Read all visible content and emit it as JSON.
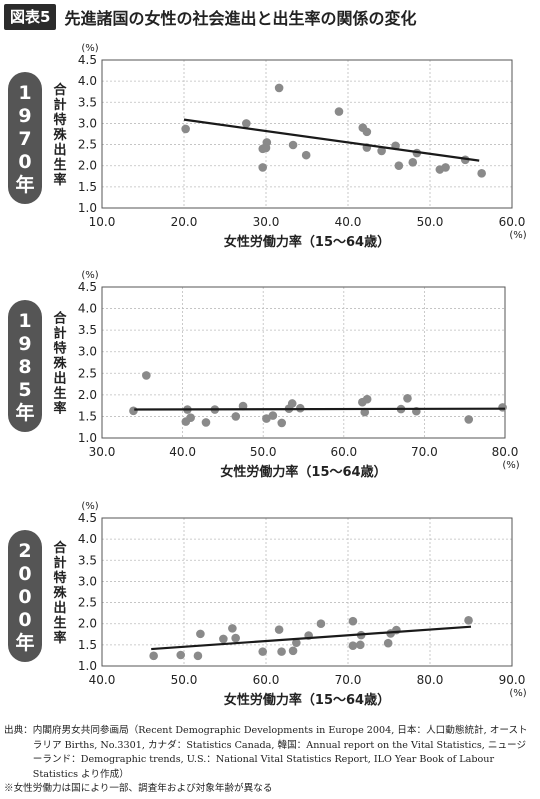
{
  "header": {
    "badge": "図表5",
    "title": "先進諸国の女性の社会進出と出生率の関係の変化"
  },
  "colors": {
    "badge_bg": "#2b2b2b",
    "pill": "#555555",
    "point": "#8a8a8a",
    "trend": "#1a1a1a",
    "grid": "#bdbdbd"
  },
  "footer": {
    "source_label": "出典：",
    "source_text": "内閣府男女共同参画局（Recent Demographic Developments in Europe 2004, 日本：人口動態統計, オーストラリア Births, No.3301, カナダ：Statistics Canada, 韓国：Annual report on the Vital Statistics, ニュージーランド：Demographic trends, U.S.：National Vital Statistics Report, ILO Year Book of Labour Statistics より作成）",
    "note": "※女性労働力は国により一部、調査年および対象年齢が異なる"
  },
  "chart_data": [
    {
      "type": "scatter",
      "year_label": "1970年",
      "xlabel": "女性労働力率（15〜64歳）",
      "ylabel": "合計特殊出生率",
      "y_unit": "(%)",
      "x_unit": "(%)",
      "xlim": [
        10,
        60
      ],
      "ylim": [
        1.0,
        4.5
      ],
      "x_ticks": [
        "10.0",
        "20.0",
        "30.0",
        "40.0",
        "50.0",
        "60.0"
      ],
      "y_ticks": [
        "1.0",
        "1.5",
        "2.0",
        "2.5",
        "3.0",
        "3.5",
        "4.0",
        "4.5"
      ],
      "grid": true,
      "points": [
        {
          "x": 20.2,
          "y": 2.87
        },
        {
          "x": 27.6,
          "y": 3.0
        },
        {
          "x": 31.6,
          "y": 3.84
        },
        {
          "x": 29.6,
          "y": 2.4
        },
        {
          "x": 30.1,
          "y": 2.55
        },
        {
          "x": 30.0,
          "y": 2.42
        },
        {
          "x": 29.6,
          "y": 1.96
        },
        {
          "x": 33.3,
          "y": 2.49
        },
        {
          "x": 34.9,
          "y": 2.25
        },
        {
          "x": 38.9,
          "y": 3.28
        },
        {
          "x": 41.8,
          "y": 2.9
        },
        {
          "x": 42.3,
          "y": 2.8
        },
        {
          "x": 42.3,
          "y": 2.43
        },
        {
          "x": 44.1,
          "y": 2.35
        },
        {
          "x": 45.8,
          "y": 2.47
        },
        {
          "x": 46.2,
          "y": 2.0
        },
        {
          "x": 47.9,
          "y": 2.08
        },
        {
          "x": 48.4,
          "y": 2.3
        },
        {
          "x": 51.2,
          "y": 1.91
        },
        {
          "x": 51.9,
          "y": 1.96
        },
        {
          "x": 54.3,
          "y": 2.14
        },
        {
          "x": 56.3,
          "y": 1.82
        }
      ],
      "trend": [
        {
          "x": 20.0,
          "y": 3.09
        },
        {
          "x": 56.0,
          "y": 2.12
        }
      ]
    },
    {
      "type": "scatter",
      "year_label": "1985年",
      "xlabel": "女性労働力率（15〜64歳）",
      "ylabel": "合計特殊出生率",
      "y_unit": "(%)",
      "x_unit": "(%)",
      "xlim": [
        30,
        80
      ],
      "ylim": [
        1.0,
        4.5
      ],
      "x_ticks": [
        "30.0",
        "40.0",
        "50.0",
        "60.0",
        "70.0",
        "80.0"
      ],
      "y_ticks": [
        "1.0",
        "1.5",
        "2.0",
        "2.5",
        "3.0",
        "3.5",
        "4.0",
        "4.5"
      ],
      "grid": true,
      "points": [
        {
          "x": 33.9,
          "y": 1.63
        },
        {
          "x": 35.5,
          "y": 2.45
        },
        {
          "x": 40.4,
          "y": 1.38
        },
        {
          "x": 40.6,
          "y": 1.66
        },
        {
          "x": 41.0,
          "y": 1.47
        },
        {
          "x": 42.9,
          "y": 1.36
        },
        {
          "x": 44.0,
          "y": 1.66
        },
        {
          "x": 46.6,
          "y": 1.5
        },
        {
          "x": 47.5,
          "y": 1.74
        },
        {
          "x": 50.4,
          "y": 1.45
        },
        {
          "x": 51.2,
          "y": 1.52
        },
        {
          "x": 52.3,
          "y": 1.35
        },
        {
          "x": 53.2,
          "y": 1.68
        },
        {
          "x": 53.6,
          "y": 1.8
        },
        {
          "x": 54.6,
          "y": 1.69
        },
        {
          "x": 62.3,
          "y": 1.83
        },
        {
          "x": 62.6,
          "y": 1.6
        },
        {
          "x": 62.9,
          "y": 1.9
        },
        {
          "x": 67.1,
          "y": 1.67
        },
        {
          "x": 67.9,
          "y": 1.92
        },
        {
          "x": 69.0,
          "y": 1.62
        },
        {
          "x": 75.5,
          "y": 1.43
        },
        {
          "x": 79.7,
          "y": 1.71
        }
      ],
      "trend": [
        {
          "x": 34.0,
          "y": 1.66
        },
        {
          "x": 80.0,
          "y": 1.68
        }
      ]
    },
    {
      "type": "scatter",
      "year_label": "2000年",
      "xlabel": "女性労働力率（15〜64歳）",
      "ylabel": "合計特殊出生率",
      "y_unit": "(%)",
      "x_unit": "(%)",
      "xlim": [
        40,
        90
      ],
      "ylim": [
        1.0,
        4.5
      ],
      "x_ticks": [
        "40.0",
        "50.0",
        "60.0",
        "70.0",
        "80.0",
        "90.0"
      ],
      "y_ticks": [
        "1.0",
        "1.5",
        "2.0",
        "2.5",
        "3.0",
        "3.5",
        "4.0",
        "4.5"
      ],
      "grid": true,
      "points": [
        {
          "x": 46.3,
          "y": 1.24
        },
        {
          "x": 49.6,
          "y": 1.26
        },
        {
          "x": 51.7,
          "y": 1.24
        },
        {
          "x": 52.0,
          "y": 1.76
        },
        {
          "x": 54.8,
          "y": 1.64
        },
        {
          "x": 55.9,
          "y": 1.89
        },
        {
          "x": 56.3,
          "y": 1.66
        },
        {
          "x": 59.6,
          "y": 1.34
        },
        {
          "x": 61.6,
          "y": 1.86
        },
        {
          "x": 61.9,
          "y": 1.34
        },
        {
          "x": 63.3,
          "y": 1.36
        },
        {
          "x": 63.7,
          "y": 1.55
        },
        {
          "x": 65.2,
          "y": 1.72
        },
        {
          "x": 66.7,
          "y": 2.0
        },
        {
          "x": 70.6,
          "y": 2.06
        },
        {
          "x": 70.6,
          "y": 1.48
        },
        {
          "x": 71.5,
          "y": 1.5
        },
        {
          "x": 71.6,
          "y": 1.73
        },
        {
          "x": 74.9,
          "y": 1.54
        },
        {
          "x": 75.2,
          "y": 1.77
        },
        {
          "x": 75.9,
          "y": 1.85
        },
        {
          "x": 84.7,
          "y": 2.08
        }
      ],
      "trend": [
        {
          "x": 46.0,
          "y": 1.4
        },
        {
          "x": 85.0,
          "y": 1.93
        }
      ]
    }
  ]
}
